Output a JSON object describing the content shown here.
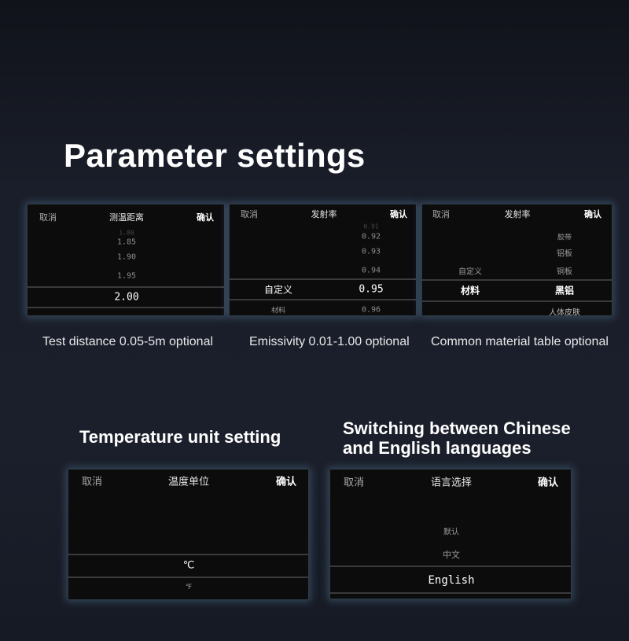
{
  "heading": "Parameter settings",
  "common": {
    "cancel": "取消",
    "confirm": "确认"
  },
  "panels": {
    "distance": {
      "title": "测温距离",
      "items": [
        "1.80",
        "1.85",
        "1.90",
        "1.95"
      ],
      "selected": "2.00",
      "caption": "Test distance 0.05-5m optional"
    },
    "emissivity": {
      "title": "发射率",
      "left_selected": "自定义",
      "left_below": "材料",
      "items": [
        "0.91",
        "0.92",
        "0.93",
        "0.94"
      ],
      "selected": "0.95",
      "below": "0.96",
      "caption": "Emissivity 0.01-1.00 optional"
    },
    "material": {
      "title": "发射率",
      "left_above": "自定义",
      "left_selected": "材料",
      "items": [
        "胶带",
        "铝板",
        "铜板"
      ],
      "selected": "黑铝",
      "below": "人体皮肤",
      "caption": "Common material table optional"
    },
    "unit": {
      "heading": "Temperature unit setting",
      "title": "温度单位",
      "selected": "℃",
      "below": "℉"
    },
    "language": {
      "heading_line1": "Switching between Chinese",
      "heading_line2": "and English languages",
      "title": "语言选择",
      "items": [
        "默认",
        "中文"
      ],
      "selected": "English"
    }
  }
}
